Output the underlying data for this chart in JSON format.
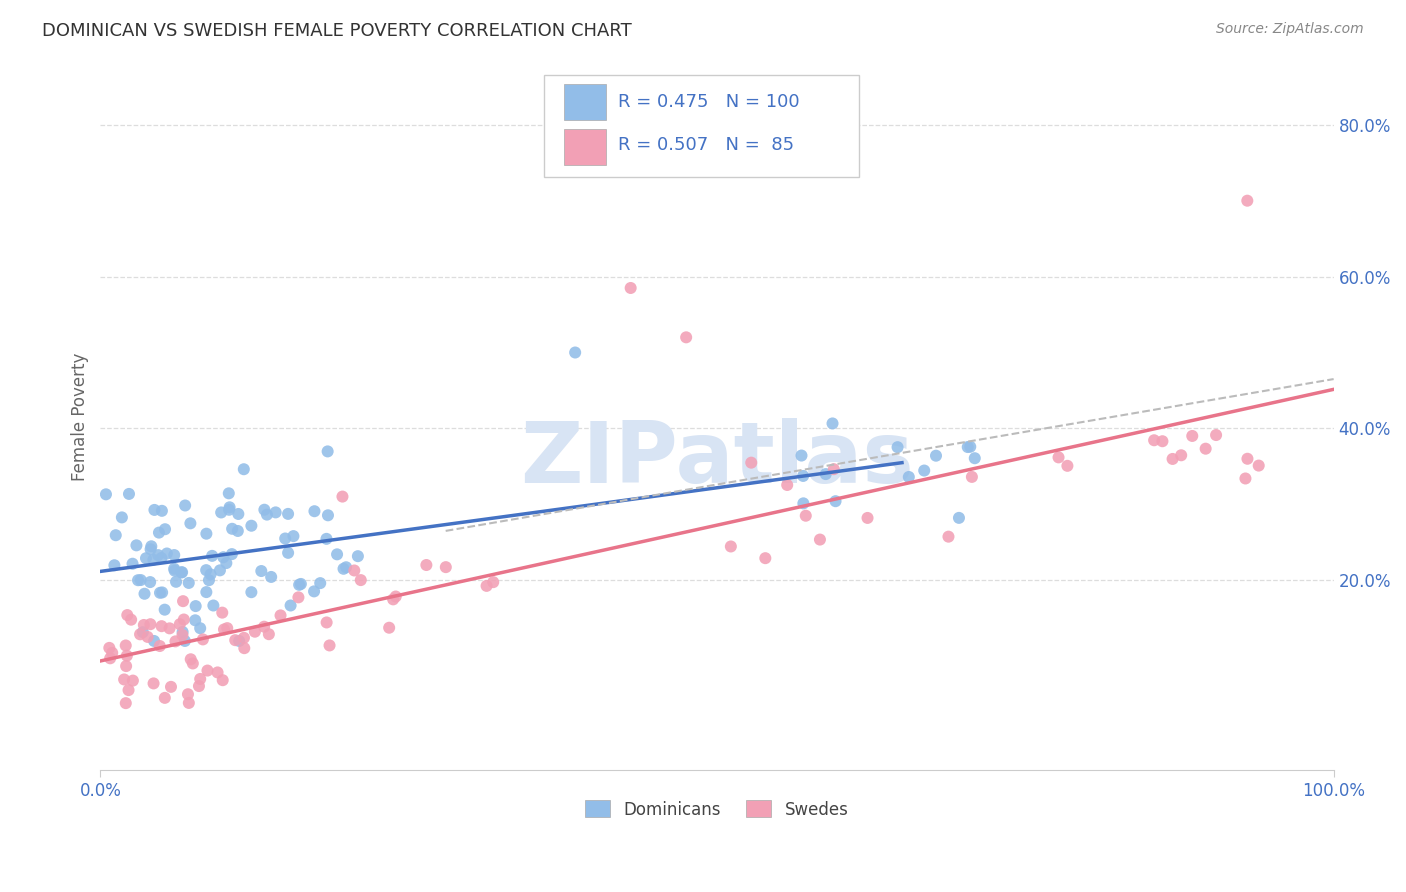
{
  "title": "DOMINICAN VS SWEDISH FEMALE POVERTY CORRELATION CHART",
  "source": "Source: ZipAtlas.com",
  "ylabel": "Female Poverty",
  "xlim": [
    0,
    1
  ],
  "ylim": [
    -0.05,
    0.88
  ],
  "yticks": [
    0.2,
    0.4,
    0.6,
    0.8
  ],
  "ytick_labels": [
    "20.0%",
    "40.0%",
    "60.0%",
    "80.0%"
  ],
  "dominicans_R": 0.475,
  "dominicans_N": 100,
  "swedes_R": 0.507,
  "swedes_N": 85,
  "blue_color": "#92BDE8",
  "pink_color": "#F2A0B5",
  "blue_line_color": "#4472C4",
  "pink_line_color": "#E8748A",
  "legend_text_color": "#4472C4",
  "title_color": "#333333",
  "watermark_color": "#D8E4F4",
  "background_color": "#FFFFFF",
  "grid_color": "#DDDDDD",
  "axis_label_color": "#4472C4",
  "source_color": "#888888",
  "ylabel_color": "#666666"
}
